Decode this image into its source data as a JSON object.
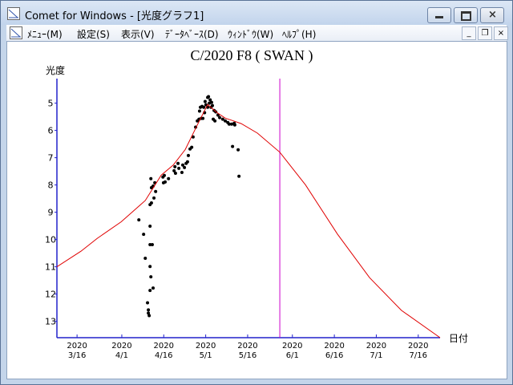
{
  "window": {
    "title": "Comet for Windows - [光度グラフ1]",
    "menu": [
      "ﾒﾆｭｰ(M)",
      "設定(S)",
      "表示(V)",
      "ﾃﾞｰﾀﾍﾞｰｽ(D)",
      "ｳｨﾝﾄﾞｳ(W)",
      "ﾍﾙﾌﾟ(H)"
    ]
  },
  "chart_data": {
    "type": "scatter",
    "title": "C/2020 F8 ( SWAN )",
    "y_label": "光度",
    "x_label": "日付",
    "ylim": [
      13.6,
      4.1
    ],
    "yticks": [
      5,
      6,
      7,
      8,
      9,
      10,
      11,
      12,
      13
    ],
    "xlim": [
      68.8,
      205.8
    ],
    "xticks": [
      {
        "value": 76,
        "label": "2020\n3/16"
      },
      {
        "value": 92,
        "label": "2020\n4/1"
      },
      {
        "value": 107,
        "label": "2020\n4/16"
      },
      {
        "value": 122,
        "label": "2020\n5/1"
      },
      {
        "value": 137,
        "label": "2020\n5/16"
      },
      {
        "value": 153,
        "label": "2020\n6/1"
      },
      {
        "value": 168,
        "label": "2020\n6/16"
      },
      {
        "value": 183,
        "label": "2020\n7/1"
      },
      {
        "value": 198,
        "label": "2020\n7/16"
      }
    ],
    "marker_x": 148.5,
    "marker_color": "#cc00cc",
    "axis_color": "#2222cc",
    "series": [
      {
        "type": "scatter",
        "color": "#000000",
        "x": [
          98.1,
          99.8,
          100.4,
          101.2,
          101.5,
          101.8,
          101.5,
          102.1,
          102.4,
          102.1,
          102.1,
          102.1,
          102.1,
          102.6,
          102.4,
          102.6,
          103.2,
          103.8,
          104.1,
          103.5,
          103.2,
          102.9,
          106.7,
          106.9,
          107.2,
          107.5,
          108.7,
          110.7,
          111.0,
          111.2,
          112.1,
          112.4,
          113.5,
          113.8,
          114.4,
          115.0,
          115.5,
          115.8,
          116.4,
          117.0,
          117.5,
          118.4,
          119.0,
          119.6,
          119.8,
          120.1,
          120.7,
          121.3,
          121.8,
          122.1,
          122.7,
          123.0,
          123.6,
          124.1,
          124.4,
          125.0,
          125.6,
          126.4,
          127.0,
          128.1,
          129.0,
          129.9,
          130.4,
          131.3,
          132.2,
          132.4,
          131.6,
          133.6,
          133.9,
          121.6,
          121.0,
          120.4,
          124.7,
          125.3,
          122.7,
          123.3,
          123.9
        ],
        "values": [
          9.28,
          9.81,
          10.69,
          12.32,
          12.7,
          12.79,
          12.58,
          11.87,
          11.37,
          10.99,
          10.19,
          9.51,
          8.72,
          8.66,
          7.77,
          8.1,
          8.04,
          7.92,
          8.24,
          8.48,
          11.78,
          10.19,
          7.71,
          7.92,
          7.65,
          7.89,
          7.77,
          7.48,
          7.33,
          7.57,
          7.21,
          7.39,
          7.54,
          7.27,
          7.36,
          7.21,
          7.15,
          6.92,
          6.68,
          6.62,
          6.24,
          5.88,
          5.65,
          5.59,
          5.29,
          5.15,
          5.12,
          5.15,
          4.94,
          5.06,
          4.79,
          4.76,
          4.88,
          4.97,
          5.09,
          5.27,
          5.32,
          5.44,
          5.53,
          5.59,
          5.65,
          5.71,
          5.77,
          5.77,
          5.74,
          5.8,
          6.59,
          6.71,
          7.68,
          5.35,
          5.56,
          5.56,
          5.59,
          5.65,
          5.15,
          5.0,
          5.15
        ]
      },
      {
        "type": "line",
        "color": "#e00000",
        "x": [
          68.8,
          77.4,
          83.2,
          91.8,
          100.4,
          106.1,
          110.4,
          114.7,
          119.0,
          122.7,
          126.1,
          129.0,
          131.9,
          134.7,
          140.5,
          148.5,
          157.7,
          169.1,
          180.6,
          192.0,
          205.8
        ],
        "values": [
          11.0,
          10.43,
          9.96,
          9.35,
          8.57,
          7.64,
          7.27,
          6.7,
          5.8,
          5.05,
          5.35,
          5.55,
          5.65,
          5.75,
          6.1,
          6.8,
          8.0,
          9.8,
          11.4,
          12.6,
          13.6
        ]
      }
    ]
  }
}
